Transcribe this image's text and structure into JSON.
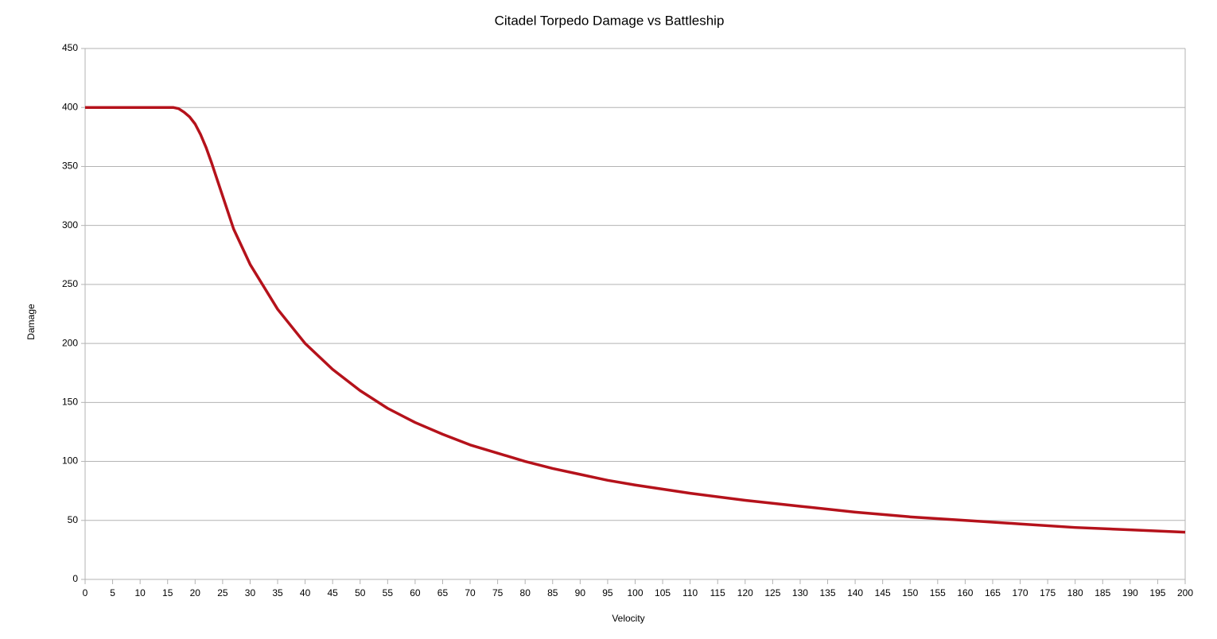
{
  "chart_data": {
    "type": "line",
    "title": "Citadel Torpedo Damage vs Battleship",
    "x_label": "Velocity",
    "y_label": "Damage",
    "x": [
      0,
      5,
      10,
      15,
      16,
      17,
      18,
      19,
      20,
      21,
      22,
      23,
      24,
      25,
      27,
      30,
      35,
      40,
      45,
      50,
      55,
      60,
      65,
      70,
      75,
      80,
      85,
      90,
      95,
      100,
      110,
      120,
      130,
      140,
      150,
      160,
      170,
      180,
      190,
      200
    ],
    "series": [
      {
        "name": "Damage",
        "color": "#b5121b",
        "values": [
          400,
          400,
          400,
          400,
          400,
          399,
          396,
          392,
          386,
          377,
          366,
          353,
          339,
          325,
          297,
          267,
          229,
          200,
          178,
          160,
          145,
          133,
          123,
          114,
          107,
          100,
          94,
          89,
          84,
          80,
          73,
          67,
          62,
          57,
          53,
          50,
          47,
          44,
          42,
          40
        ]
      }
    ],
    "xlim": [
      0,
      200
    ],
    "xticks": [
      0,
      5,
      10,
      15,
      20,
      25,
      30,
      35,
      40,
      45,
      50,
      55,
      60,
      65,
      70,
      75,
      80,
      85,
      90,
      95,
      100,
      105,
      110,
      115,
      120,
      125,
      130,
      135,
      140,
      145,
      150,
      155,
      160,
      165,
      170,
      175,
      180,
      185,
      190,
      195,
      200
    ],
    "ylim": [
      0,
      450
    ],
    "yticks": [
      0,
      50,
      100,
      150,
      200,
      250,
      300,
      350,
      400,
      450
    ],
    "grid": true
  }
}
